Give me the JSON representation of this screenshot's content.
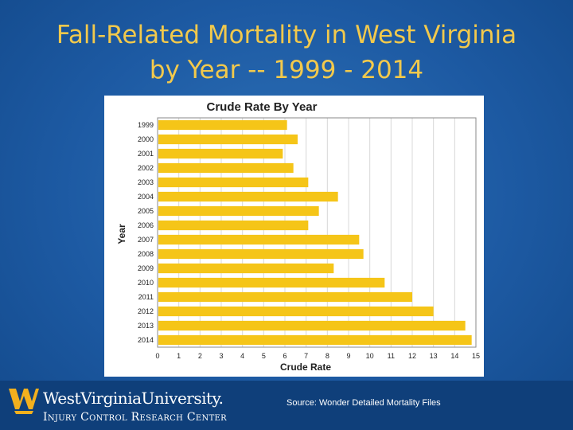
{
  "slide": {
    "title_line1": "Fall-Related Mortality in West Virginia",
    "title_line2": "by Year -- 1999 - 2014",
    "source": "Source: Wonder Detailed Mortality Files"
  },
  "logo": {
    "university": "WestVirginiaUniversity.",
    "center": "Injury Control Research Center"
  },
  "colors": {
    "bar": "#f5c518",
    "title": "#f2c94c",
    "background": "#1d5aa3",
    "footer": "#0f3f7a"
  },
  "chart_data": {
    "type": "bar",
    "orientation": "horizontal",
    "title": "Crude Rate By Year",
    "xlabel": "Crude Rate",
    "ylabel": "Year",
    "xlim": [
      0,
      15
    ],
    "xticks": [
      "0",
      "1",
      "2",
      "3",
      "4",
      "5",
      "6",
      "7",
      "8",
      "9",
      "10",
      "11",
      "12",
      "13",
      "14",
      "15"
    ],
    "grid": true,
    "categories": [
      "1999",
      "2000",
      "2001",
      "2002",
      "2003",
      "2004",
      "2005",
      "2006",
      "2007",
      "2008",
      "2009",
      "2010",
      "2011",
      "2012",
      "2013",
      "2014"
    ],
    "values": [
      6.1,
      6.6,
      5.9,
      6.4,
      7.1,
      8.5,
      7.6,
      7.1,
      9.5,
      9.7,
      8.3,
      10.7,
      12.0,
      13.0,
      14.5,
      14.8
    ]
  }
}
